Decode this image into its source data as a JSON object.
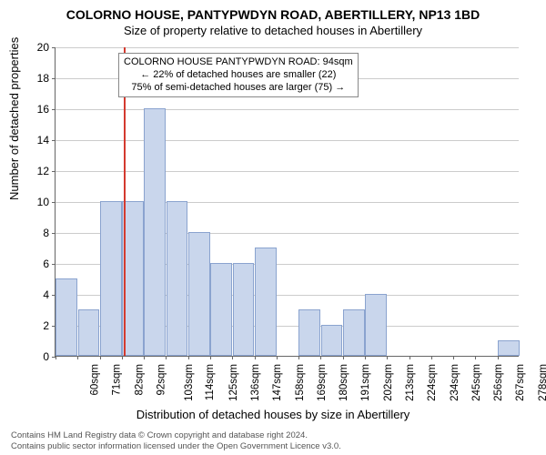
{
  "title": "COLORNO HOUSE, PANTYPWDYN ROAD, ABERTILLERY, NP13 1BD",
  "subtitle": "Size of property relative to detached houses in Abertillery",
  "ylabel": "Number of detached properties",
  "xlabel": "Distribution of detached houses by size in Abertillery",
  "chart": {
    "type": "histogram",
    "background_color": "#ffffff",
    "grid_color": "#cccccc",
    "axis_color": "#666666",
    "bar_fill": "#c9d6ec",
    "bar_stroke": "#8aa3cf",
    "refline_color": "#d43a2f",
    "ylim": [
      0,
      20
    ],
    "ytick_step": 2,
    "x_start": 60,
    "x_step": 11,
    "categories": [
      "60sqm",
      "71sqm",
      "82sqm",
      "92sqm",
      "103sqm",
      "114sqm",
      "125sqm",
      "136sqm",
      "147sqm",
      "158sqm",
      "169sqm",
      "180sqm",
      "191sqm",
      "202sqm",
      "213sqm",
      "224sqm",
      "234sqm",
      "245sqm",
      "256sqm",
      "267sqm",
      "278sqm"
    ],
    "values": [
      5,
      3,
      10,
      10,
      16,
      10,
      8,
      6,
      6,
      7,
      0,
      3,
      2,
      3,
      4,
      0,
      0,
      0,
      0,
      0,
      1
    ],
    "refline_x": 94,
    "annotation": {
      "line1": "COLORNO HOUSE PANTYPWDYN ROAD: 94sqm",
      "line2": "← 22% of detached houses are smaller (22)",
      "line3": "75% of semi-detached houses are larger (75) →"
    },
    "title_fontsize": 14,
    "subtitle_fontsize": 13,
    "label_fontsize": 13,
    "tick_fontsize": 12
  },
  "footer": {
    "line1": "Contains HM Land Registry data © Crown copyright and database right 2024.",
    "line2": "Contains public sector information licensed under the Open Government Licence v3.0."
  }
}
